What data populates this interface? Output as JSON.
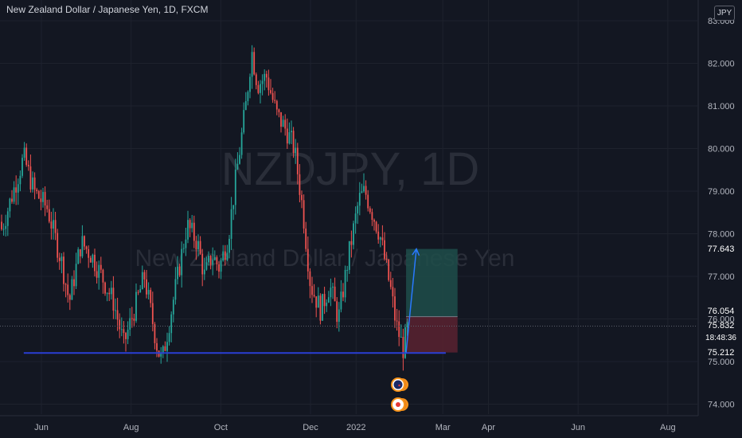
{
  "header": {
    "title": "New Zealand Dollar / Japanese Yen, 1D, FXCM",
    "currency": "JPY"
  },
  "watermark": {
    "symbol": "NZDJPY, 1D",
    "name": "New Zealand Dollar / Japanese Yen"
  },
  "price_tags": {
    "target": "77.643",
    "entry": "76.054",
    "last": "75.832",
    "countdown": "18:48:36",
    "stop": "75.212"
  },
  "colors": {
    "background": "#131722",
    "up": "#26a69a",
    "down": "#ef5350",
    "support_line": "#2a3fd4",
    "arrow": "#2979ff",
    "target_zone": "#1f4e4a",
    "stop_zone": "#5a2230",
    "target_tag": "#26a69a",
    "stop_tag": "#f23645",
    "entry_tag": "#5d606b",
    "last_tag": "#26a69a"
  },
  "chart_data": {
    "type": "candlestick",
    "symbol": "NZDJPY",
    "timeframe": "1D",
    "x_tick_labels": [
      "Jun",
      "Aug",
      "Oct",
      "Dec",
      "2022",
      "Mar",
      "Apr",
      "Jun",
      "Aug"
    ],
    "y_tick_labels": [
      "83.000",
      "82.000",
      "81.000",
      "80.000",
      "79.000",
      "78.000",
      "77.000",
      "76.000",
      "75.000",
      "74.000"
    ],
    "ylim": [
      73.6,
      83.1
    ],
    "price_path": [
      [
        "2021-04-20",
        78.6
      ],
      [
        "2021-04-28",
        79.2
      ],
      [
        "2021-05-05",
        78.1
      ],
      [
        "2021-05-12",
        78.9
      ],
      [
        "2021-05-20",
        79.8
      ],
      [
        "2021-05-27",
        79.0
      ],
      [
        "2021-06-05",
        78.6
      ],
      [
        "2021-06-15",
        77.3
      ],
      [
        "2021-06-20",
        76.4
      ],
      [
        "2021-06-28",
        77.8
      ],
      [
        "2021-07-05",
        77.5
      ],
      [
        "2021-07-12",
        77.0
      ],
      [
        "2021-07-20",
        76.4
      ],
      [
        "2021-07-27",
        75.4
      ],
      [
        "2021-08-03",
        76.2
      ],
      [
        "2021-08-10",
        77.0
      ],
      [
        "2021-08-19",
        75.3
      ],
      [
        "2021-08-22",
        75.0
      ],
      [
        "2021-08-30",
        76.5
      ],
      [
        "2021-09-08",
        78.2
      ],
      [
        "2021-09-15",
        77.8
      ],
      [
        "2021-09-20",
        77.0
      ],
      [
        "2021-09-25",
        77.5
      ],
      [
        "2021-09-30",
        77.2
      ],
      [
        "2021-10-06",
        77.9
      ],
      [
        "2021-10-12",
        79.5
      ],
      [
        "2021-10-18",
        81.0
      ],
      [
        "2021-10-22",
        82.3
      ],
      [
        "2021-10-26",
        81.5
      ],
      [
        "2021-11-01",
        81.7
      ],
      [
        "2021-11-08",
        80.8
      ],
      [
        "2021-11-15",
        80.4
      ],
      [
        "2021-11-20",
        80.0
      ],
      [
        "2021-11-26",
        78.5
      ],
      [
        "2021-12-01",
        76.8
      ],
      [
        "2021-12-08",
        76.2
      ],
      [
        "2021-12-14",
        76.8
      ],
      [
        "2021-12-20",
        76.0
      ],
      [
        "2021-12-27",
        77.5
      ],
      [
        "2022-01-03",
        78.8
      ],
      [
        "2022-01-07",
        79.0
      ],
      [
        "2022-01-12",
        78.5
      ],
      [
        "2022-01-17",
        78.0
      ],
      [
        "2022-01-21",
        77.3
      ],
      [
        "2022-01-25",
        76.6
      ],
      [
        "2022-01-28",
        75.9
      ],
      [
        "2022-02-02",
        75.3
      ],
      [
        "2022-02-05",
        75.8
      ]
    ],
    "support_line": {
      "price": 75.2,
      "from": "2021-05-20",
      "to": "2022-03-03"
    },
    "projection_arrow": {
      "from": [
        "2022-02-04",
        75.212
      ],
      "to": [
        "2022-02-11",
        77.643
      ]
    },
    "position": {
      "from": "2022-02-04",
      "to": "2022-03-11",
      "target": 77.643,
      "entry": 76.054,
      "stop": 75.212,
      "last": 75.832
    }
  }
}
